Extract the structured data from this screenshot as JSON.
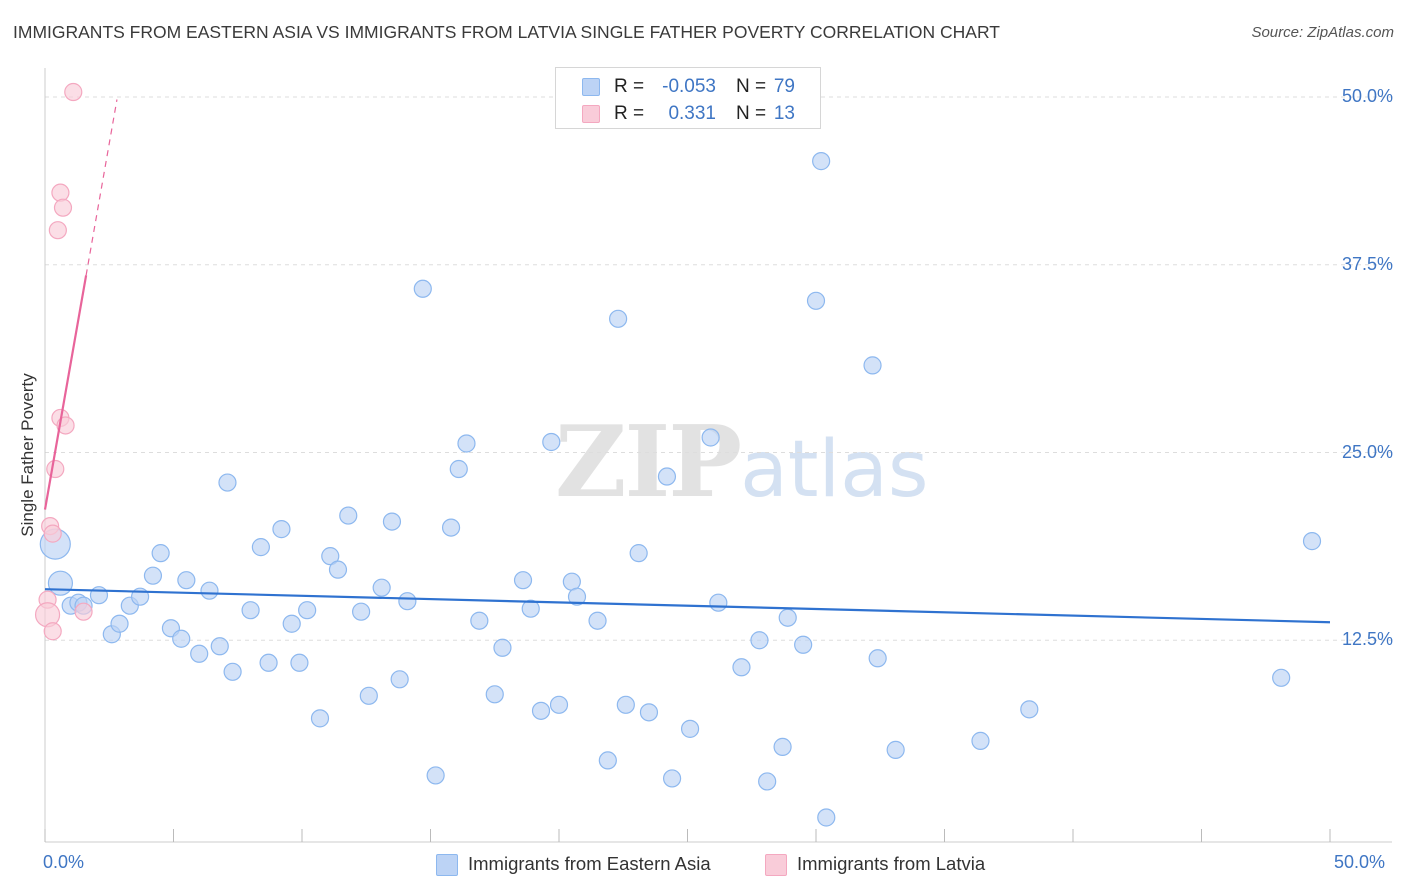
{
  "title": "IMMIGRANTS FROM EASTERN ASIA VS IMMIGRANTS FROM LATVIA SINGLE FATHER POVERTY CORRELATION CHART",
  "source": "Source: ZipAtlas.com",
  "watermark": {
    "zip": "ZIP",
    "atlas": "atlas"
  },
  "stats": [
    {
      "r_label": "R =",
      "r_value": "-0.053",
      "n_label": "N =",
      "n_value": "79",
      "color": "#8db8ef"
    },
    {
      "r_label": "R =",
      "r_value": "0.331",
      "n_label": "N =",
      "n_value": "13",
      "color": "#f4a8c0"
    }
  ],
  "colors": {
    "blue_fill": "#bcd3f5",
    "blue_stroke": "#8db8ef",
    "blue_line": "#2f72d0",
    "pink_fill": "#f9ccd9",
    "pink_stroke": "#f4a8c0",
    "pink_line": "#e8649a",
    "grid": "#dddddd",
    "axis_label": "#3f76c4"
  },
  "chart_data": {
    "type": "scatter",
    "title": "IMMIGRANTS FROM EASTERN ASIA VS IMMIGRANTS FROM LATVIA SINGLE FATHER POVERTY CORRELATION CHART",
    "xlabel": "",
    "ylabel": "Single Father Poverty",
    "xlim": [
      0,
      50
    ],
    "ylim": [
      0,
      50
    ],
    "x_tick_labels": [
      {
        "value": 0,
        "label": "0.0%"
      },
      {
        "value": 50,
        "label": "50.0%"
      }
    ],
    "y_tick_labels": [
      {
        "value": 12.5,
        "label": "12.5%"
      },
      {
        "value": 25.0,
        "label": "25.0%"
      },
      {
        "value": 37.5,
        "label": "37.5%"
      },
      {
        "value": 50.0,
        "label": "50.0%"
      }
    ],
    "legend_position": "bottom",
    "series": [
      {
        "name": "Immigrants from Eastern Asia",
        "color": "#8db8ef",
        "trend": {
          "x0": 0,
          "y0": 15.9,
          "x1": 50,
          "y1": 13.7,
          "dashed_until": null
        },
        "points": [
          [
            0.4,
            18.9,
            3
          ],
          [
            0.6,
            16.3,
            2
          ],
          [
            1.0,
            14.8,
            1
          ],
          [
            1.3,
            15.0,
            1
          ],
          [
            1.5,
            14.8,
            1
          ],
          [
            2.1,
            15.5,
            1
          ],
          [
            2.6,
            12.9,
            1
          ],
          [
            2.9,
            13.6,
            1
          ],
          [
            3.3,
            14.8,
            1
          ],
          [
            3.7,
            15.4,
            1
          ],
          [
            4.2,
            16.8,
            1
          ],
          [
            4.5,
            18.3,
            1
          ],
          [
            4.9,
            13.3,
            1
          ],
          [
            5.3,
            12.6,
            1
          ],
          [
            5.5,
            16.5,
            1
          ],
          [
            6.0,
            11.6,
            1
          ],
          [
            6.4,
            15.8,
            1
          ],
          [
            6.8,
            12.1,
            1
          ],
          [
            7.3,
            10.4,
            1
          ],
          [
            7.1,
            23.0,
            1
          ],
          [
            8.0,
            14.5,
            1
          ],
          [
            8.4,
            18.7,
            1
          ],
          [
            8.7,
            11.0,
            1
          ],
          [
            9.2,
            19.9,
            1
          ],
          [
            9.6,
            13.6,
            1
          ],
          [
            9.9,
            11.0,
            1
          ],
          [
            10.2,
            14.5,
            1
          ],
          [
            10.7,
            7.3,
            1
          ],
          [
            11.1,
            18.1,
            1
          ],
          [
            11.4,
            17.2,
            1
          ],
          [
            11.8,
            20.8,
            1
          ],
          [
            12.3,
            14.4,
            1
          ],
          [
            12.6,
            8.8,
            1
          ],
          [
            13.1,
            16.0,
            1
          ],
          [
            13.5,
            20.4,
            1
          ],
          [
            13.8,
            9.9,
            1
          ],
          [
            14.1,
            15.1,
            1
          ],
          [
            14.7,
            35.9,
            1
          ],
          [
            15.2,
            3.5,
            1
          ],
          [
            15.8,
            20.0,
            1
          ],
          [
            16.1,
            23.9,
            1
          ],
          [
            16.4,
            25.6,
            1
          ],
          [
            16.9,
            13.8,
            1
          ],
          [
            17.5,
            8.9,
            1
          ],
          [
            17.8,
            12.0,
            1
          ],
          [
            18.6,
            16.5,
            1
          ],
          [
            18.9,
            14.6,
            1
          ],
          [
            19.3,
            7.8,
            1
          ],
          [
            19.7,
            25.7,
            1
          ],
          [
            20.0,
            8.2,
            1
          ],
          [
            20.5,
            16.4,
            1
          ],
          [
            20.7,
            15.4,
            1
          ],
          [
            21.5,
            13.8,
            1
          ],
          [
            21.9,
            4.5,
            1
          ],
          [
            22.3,
            33.9,
            1
          ],
          [
            22.6,
            8.2,
            1
          ],
          [
            23.1,
            18.3,
            1
          ],
          [
            23.5,
            7.7,
            1
          ],
          [
            24.2,
            23.4,
            1
          ],
          [
            24.4,
            3.3,
            1
          ],
          [
            25.1,
            6.6,
            1
          ],
          [
            25.9,
            26.0,
            1
          ],
          [
            26.2,
            15.0,
            1
          ],
          [
            27.1,
            10.7,
            1
          ],
          [
            27.8,
            12.5,
            1
          ],
          [
            28.1,
            3.1,
            1
          ],
          [
            28.7,
            5.4,
            1
          ],
          [
            28.9,
            14.0,
            1
          ],
          [
            29.5,
            12.2,
            1
          ],
          [
            30.0,
            35.1,
            1
          ],
          [
            30.4,
            0.7,
            1
          ],
          [
            30.2,
            44.4,
            1
          ],
          [
            32.4,
            11.3,
            1
          ],
          [
            32.2,
            30.8,
            1
          ],
          [
            33.1,
            5.2,
            1
          ],
          [
            36.4,
            5.8,
            1
          ],
          [
            38.3,
            7.9,
            1
          ],
          [
            48.1,
            10.0,
            1
          ],
          [
            49.3,
            19.1,
            1
          ]
        ]
      },
      {
        "name": "Immigrants from Latvia",
        "color": "#f4a8c0",
        "trend": {
          "x0": 0,
          "y0": 21.2,
          "x1": 1.6,
          "y1": 36.8,
          "dashed_until": 2.8
        },
        "points": [
          [
            1.1,
            49.0,
            1
          ],
          [
            0.6,
            42.3,
            1
          ],
          [
            0.7,
            41.3,
            1
          ],
          [
            0.5,
            39.8,
            1
          ],
          [
            0.6,
            27.3,
            1
          ],
          [
            0.8,
            26.8,
            1
          ],
          [
            0.4,
            23.9,
            1
          ],
          [
            0.2,
            20.1,
            1
          ],
          [
            0.3,
            19.6,
            1
          ],
          [
            0.1,
            15.2,
            1
          ],
          [
            0.1,
            14.2,
            2
          ],
          [
            0.3,
            13.1,
            1
          ],
          [
            1.5,
            14.4,
            1
          ]
        ]
      }
    ]
  }
}
